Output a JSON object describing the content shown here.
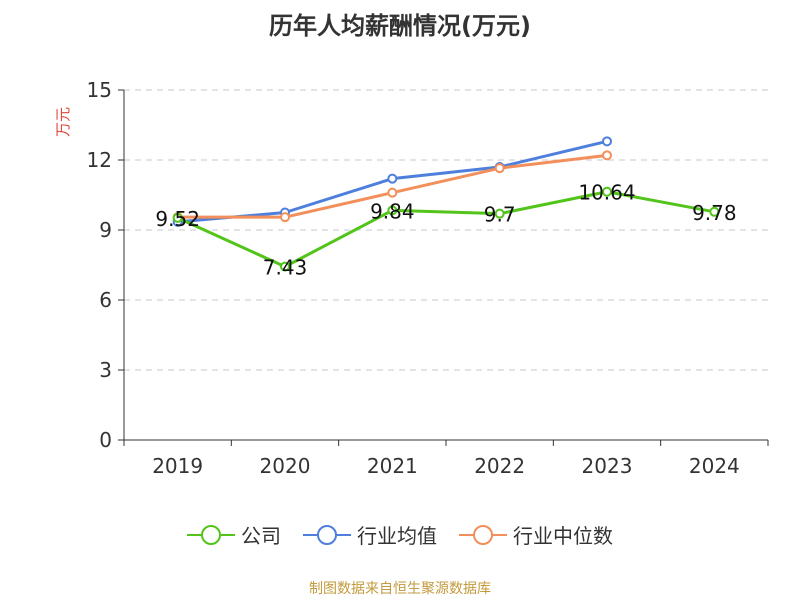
{
  "chart_data": {
    "type": "line",
    "title": "历年人均薪酬情况(万元)",
    "ylabel": "万元",
    "xlabel": "",
    "categories": [
      "2019",
      "2020",
      "2021",
      "2022",
      "2023",
      "2024"
    ],
    "ylim": [
      0,
      15
    ],
    "yticks": [
      0,
      3,
      6,
      9,
      12,
      15
    ],
    "grid": true,
    "legend_position": "bottom",
    "series": [
      {
        "name": "公司",
        "color": "#52c41a",
        "values": [
          9.52,
          7.43,
          9.84,
          9.7,
          10.64,
          9.78
        ],
        "labels": [
          "9.52",
          "7.43",
          "9.84",
          "9.7",
          "10.64",
          "9.78"
        ]
      },
      {
        "name": "行业均值",
        "color": "#4e7fdc",
        "values": [
          9.35,
          9.75,
          11.2,
          11.7,
          12.8,
          null
        ],
        "labels": []
      },
      {
        "name": "行业中位数",
        "color": "#f28f5a",
        "values": [
          9.55,
          9.55,
          10.6,
          11.65,
          12.2,
          null
        ],
        "labels": []
      }
    ]
  },
  "source": "制图数据来自恒生聚源数据库"
}
